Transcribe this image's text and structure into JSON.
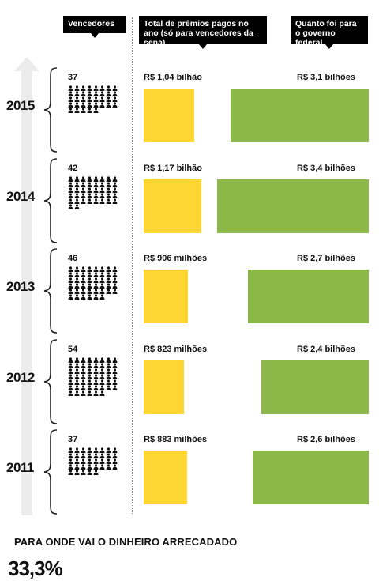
{
  "headers": {
    "winners": "Vencedores",
    "prizes": "Total de prêmios pagos no ano (só para vencedores da sena)",
    "government": "Quanto foi para o governo federal"
  },
  "colors": {
    "prize": "#fdd633",
    "government": "#8cb84a",
    "header_bg": "#000000"
  },
  "icons": {
    "timeline": "up-arrow-icon",
    "winner": "person-icon",
    "bracket": "curly-brace-icon"
  },
  "rows": [
    {
      "year": "2015",
      "winners": 37,
      "winners_label": "37",
      "prize_label": "R$ 1,04 bilhão",
      "gov_label": "R$ 3,1 bilhões"
    },
    {
      "year": "2014",
      "winners": 42,
      "winners_label": "42",
      "prize_label": "R$ 1,17 bilhão",
      "gov_label": "R$ 3,4 bilhões"
    },
    {
      "year": "2013",
      "winners": 46,
      "winners_label": "46",
      "prize_label": "R$ 906 milhões",
      "gov_label": "R$ 2,7 bilhões"
    },
    {
      "year": "2012",
      "winners": 54,
      "winners_label": "54",
      "prize_label": "R$ 823 milhões",
      "gov_label": "R$ 2,4 bilhões"
    },
    {
      "year": "2011",
      "winners": 37,
      "winners_label": "37",
      "prize_label": "R$ 883 milhões",
      "gov_label": "R$ 2,6 bilhões"
    }
  ],
  "chart_data": {
    "type": "bar",
    "categories": [
      "2015",
      "2014",
      "2013",
      "2012",
      "2011"
    ],
    "series": [
      {
        "name": "Total de prêmios pagos no ano (só para vencedores da sena)",
        "values": [
          1.04,
          1.17,
          0.906,
          0.823,
          0.883
        ]
      },
      {
        "name": "Quanto foi para o governo federal",
        "values": [
          3.1,
          3.4,
          2.7,
          2.4,
          2.6
        ]
      }
    ],
    "winners": [
      37,
      42,
      46,
      54,
      37
    ],
    "unit": "R$ bilhões"
  },
  "section": {
    "title": "PARA ONDE VAI O DINHEIRO ARRECADADO",
    "percent": "33,3%"
  }
}
